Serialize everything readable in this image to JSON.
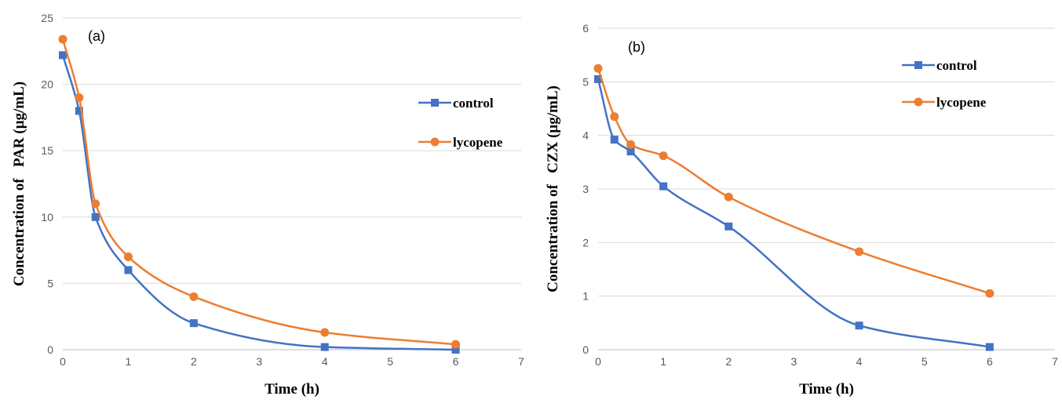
{
  "chart_data": [
    {
      "type": "line",
      "panel_label": "(a)",
      "xlabel": "Time (h)",
      "ylabel": "Concentration of   PAR (µg/mL)",
      "xlim": [
        0,
        7
      ],
      "ylim": [
        0,
        25
      ],
      "xticks": [
        "0",
        "1",
        "2",
        "3",
        "4",
        "5",
        "6",
        "7"
      ],
      "yticks": [
        "0",
        "5",
        "10",
        "15",
        "20",
        "25"
      ],
      "grid": true,
      "legend_position": "right",
      "series": [
        {
          "name": "control",
          "color": "#4472C4",
          "marker": "square",
          "x": [
            0,
            0.25,
            0.5,
            1,
            2,
            4,
            6
          ],
          "y": [
            22.2,
            18,
            10,
            6,
            2,
            0.2,
            0
          ]
        },
        {
          "name": "lycopene",
          "color": "#ED7D31",
          "marker": "circle",
          "x": [
            0,
            0.25,
            0.5,
            1,
            2,
            4,
            6
          ],
          "y": [
            23.4,
            19,
            11,
            7,
            4,
            1.3,
            0.4
          ]
        }
      ]
    },
    {
      "type": "line",
      "panel_label": "(b)",
      "xlabel": "Time (h)",
      "ylabel": "Concentration of   CZX (µg/mL)",
      "xlim": [
        0,
        7
      ],
      "ylim": [
        0,
        6
      ],
      "xticks": [
        "0",
        "1",
        "2",
        "3",
        "4",
        "5",
        "6",
        "7"
      ],
      "yticks": [
        "0",
        "1",
        "2",
        "3",
        "4",
        "5",
        "6"
      ],
      "grid": true,
      "legend_position": "top-right",
      "series": [
        {
          "name": "control",
          "color": "#4472C4",
          "marker": "square",
          "x": [
            0,
            0.25,
            0.5,
            1,
            2,
            4,
            6
          ],
          "y": [
            5.05,
            3.92,
            3.7,
            3.05,
            2.3,
            0.45,
            0.05
          ]
        },
        {
          "name": "lycopene",
          "color": "#ED7D31",
          "marker": "circle",
          "x": [
            0,
            0.25,
            0.5,
            1,
            2,
            4,
            6
          ],
          "y": [
            5.25,
            4.35,
            3.83,
            3.62,
            2.85,
            1.83,
            1.05
          ]
        }
      ]
    }
  ]
}
